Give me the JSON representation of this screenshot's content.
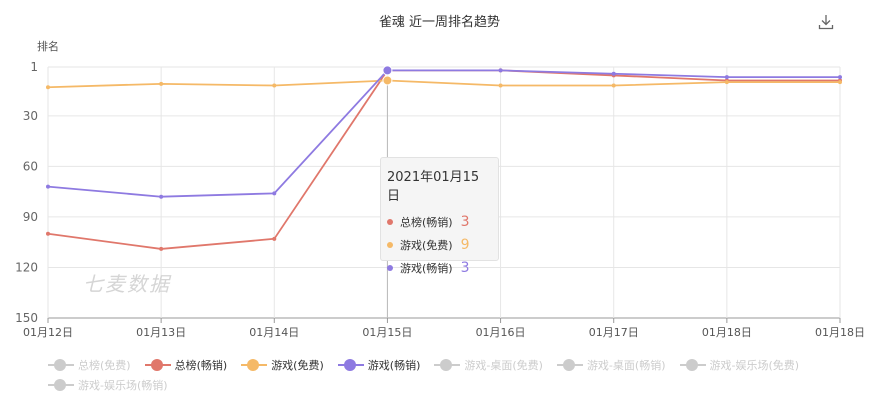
{
  "title": "雀魂 近一周排名趋势",
  "download_icon": "download-icon",
  "watermark": "七麦数据",
  "chart_data": {
    "type": "line",
    "ylabel": "排名",
    "xlabel": "",
    "y_inverted": true,
    "ylim": [
      1,
      150
    ],
    "yticks": [
      1,
      30,
      60,
      90,
      120,
      150
    ],
    "categories": [
      "01月12日",
      "01月13日",
      "01月14日",
      "01月15日",
      "01月16日",
      "01月17日",
      "01月18日",
      "01月18日"
    ],
    "grid": true,
    "legend_position": "bottom",
    "series": [
      {
        "name": "总榜(畅销)",
        "color": "#e0776b",
        "values": [
          100,
          109,
          103,
          3,
          3,
          6,
          9,
          9
        ]
      },
      {
        "name": "游戏(免费)",
        "color": "#f5b967",
        "values": [
          13,
          11,
          12,
          9,
          12,
          12,
          10,
          10
        ]
      },
      {
        "name": "游戏(畅销)",
        "color": "#8e7ae1",
        "values": [
          72,
          78,
          76,
          3,
          3,
          5,
          7,
          7
        ]
      }
    ],
    "legend": [
      {
        "name": "总榜(免费)",
        "active": false,
        "color": "#cccccc"
      },
      {
        "name": "总榜(畅销)",
        "active": true,
        "color": "#e0776b"
      },
      {
        "name": "游戏(免费)",
        "active": true,
        "color": "#f5b967"
      },
      {
        "name": "游戏(畅销)",
        "active": true,
        "color": "#8e7ae1"
      },
      {
        "name": "游戏-桌面(免费)",
        "active": false,
        "color": "#cccccc"
      },
      {
        "name": "游戏-桌面(畅销)",
        "active": false,
        "color": "#cccccc"
      },
      {
        "name": "游戏-娱乐场(免费)",
        "active": false,
        "color": "#cccccc"
      },
      {
        "name": "游戏-娱乐场(畅销)",
        "active": false,
        "color": "#cccccc"
      }
    ],
    "tooltip": {
      "date": "2021年01月15日",
      "index": 3,
      "rows": [
        {
          "name": "总榜(畅销)",
          "value": "3",
          "color": "#e0776b"
        },
        {
          "name": "游戏(免费)",
          "value": "9",
          "color": "#f5b967"
        },
        {
          "name": "游戏(畅销)",
          "value": "3",
          "color": "#8e7ae1"
        }
      ]
    }
  }
}
